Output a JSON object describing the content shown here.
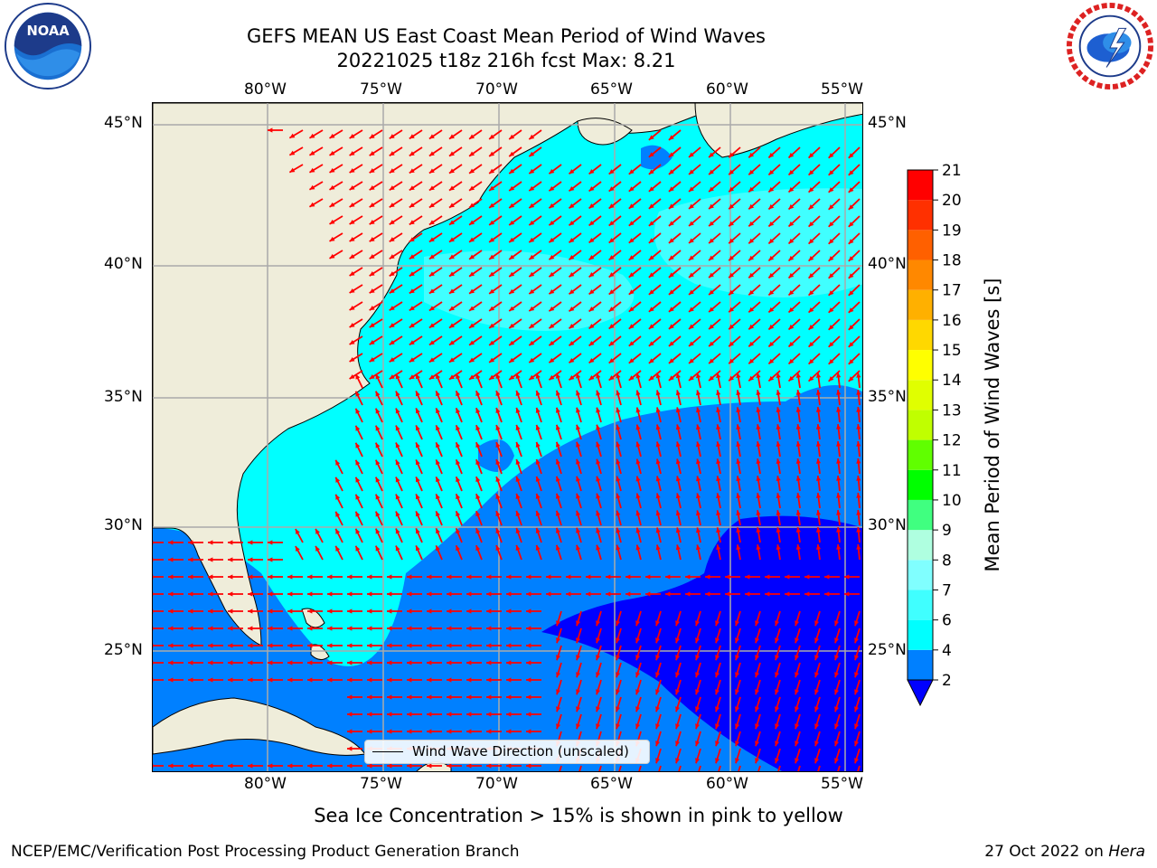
{
  "title": {
    "line1": "GEFS MEAN US East Coast Mean Period of Wind Waves",
    "line2": "20221025 t18z 216h fcst   Max: 8.21"
  },
  "logos": {
    "left": "noaa-logo",
    "right": "national-weather-service-logo",
    "left_ring_text": "NATIONAL OCEANIC AND ATMOSPHERIC ADMINISTRATION · U.S. DEPARTMENT OF COMMERCE",
    "left_center_text": "NOAA",
    "right_ring_text": "NATIONAL WEATHER SERVICE"
  },
  "axes": {
    "lon_labels": [
      "80°W",
      "75°W",
      "70°W",
      "65°W",
      "60°W",
      "55°W"
    ],
    "lat_labels": [
      "45°N",
      "40°N",
      "35°N",
      "30°N",
      "25°N"
    ]
  },
  "colorbar": {
    "label": "Mean Period of Wind Waves [s]",
    "ticks": [
      "21",
      "20",
      "19",
      "18",
      "17",
      "16",
      "15",
      "14",
      "13",
      "12",
      "11",
      "10",
      "9",
      "8",
      "7",
      "6",
      "4",
      "2"
    ],
    "colors": [
      "#0000ff",
      "#0080ff",
      "#00ffff",
      "#40ffff",
      "#80ffff",
      "#afffe0",
      "#40ff80",
      "#00ff00",
      "#60ff00",
      "#c0ff00",
      "#e0ff00",
      "#ffff00",
      "#ffd800",
      "#ffb000",
      "#ff8800",
      "#ff6000",
      "#ff3000",
      "#ff0000"
    ],
    "bounds": [
      2,
      4,
      6,
      7,
      8,
      9,
      10,
      11,
      12,
      13,
      14,
      15,
      16,
      17,
      18,
      19,
      20,
      21
    ]
  },
  "map": {
    "land_color": "#efedda",
    "arrow_color": "#ff0000",
    "grid_color": "#aaaaaa",
    "bands": {
      "band_2_4": "#0080ff",
      "band_4_6": "#00ffff",
      "band_6_7": "#40ffff",
      "band_lt_2": "#0000ff"
    }
  },
  "legend": {
    "label": "Wind Wave Direction (unscaled)"
  },
  "ice_note": "Sea Ice Concentration > 15% is shown in pink to yellow",
  "footer": {
    "left": "NCEP/EMC/Verification Post Processing Product Generation Branch",
    "right_date": "27 Oct 2022 on ",
    "right_host": "Hera"
  }
}
